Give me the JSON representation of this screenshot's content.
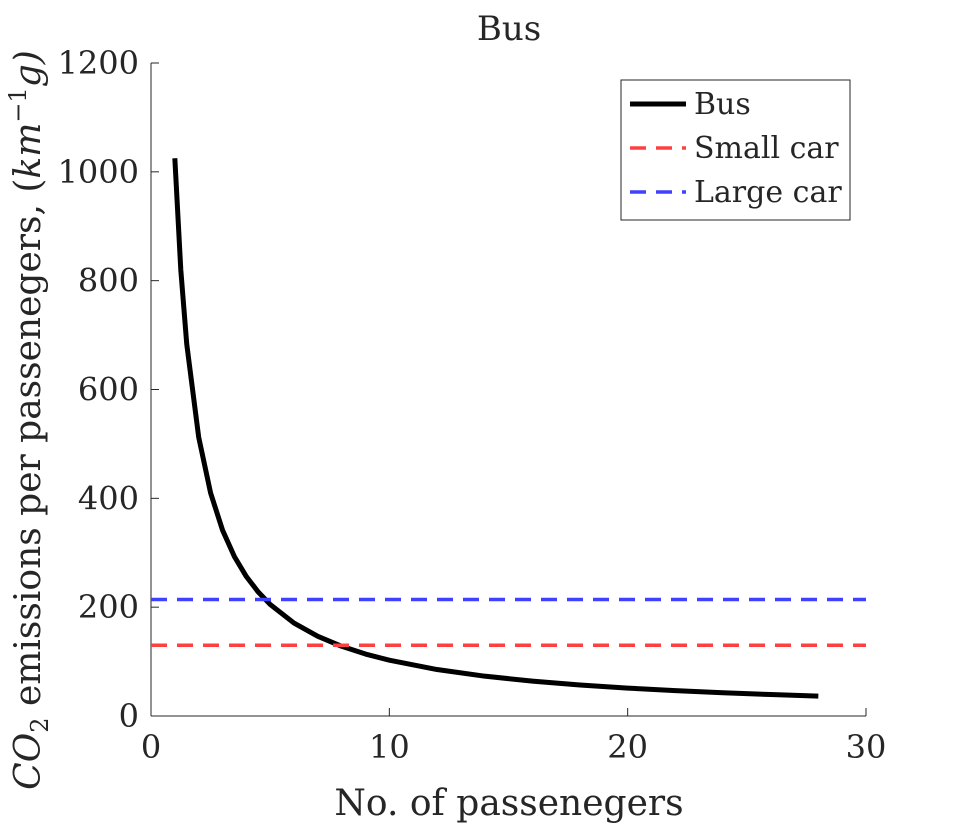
{
  "chart_data": {
    "type": "line",
    "title": "Bus",
    "xlabel": "No. of passenegers",
    "ylabel": {
      "prefix": "CO",
      "subscript": "2",
      "middle": " emissions per passenegers, (",
      "unit_base": "km",
      "unit_superscript": "−1",
      "unit_tail": "g)"
    },
    "xlim": [
      0,
      30
    ],
    "ylim": [
      0,
      1200
    ],
    "xticks": [
      0,
      10,
      20,
      30
    ],
    "yticks": [
      0,
      200,
      400,
      600,
      800,
      1000,
      1200
    ],
    "grid": false,
    "legend_position": "top-right",
    "series": [
      {
        "name": "Bus",
        "style": "solid",
        "color": "#000000",
        "x": [
          1,
          1.25,
          1.5,
          2,
          2.5,
          3,
          3.5,
          4,
          4.5,
          5,
          6,
          7,
          8,
          9,
          10,
          12,
          14,
          16,
          18,
          20,
          22,
          24,
          26,
          28
        ],
        "y": [
          1025,
          820,
          683.3,
          512.5,
          410,
          341.7,
          292.9,
          256.3,
          227.8,
          205,
          170.8,
          146.4,
          128.1,
          113.9,
          102.5,
          85.4,
          73.2,
          64.1,
          56.9,
          51.3,
          46.6,
          42.7,
          39.4,
          36.6
        ]
      },
      {
        "name": "Small car",
        "style": "dashed",
        "color": "#ff4040",
        "x": [
          0,
          30
        ],
        "y": [
          130,
          130
        ]
      },
      {
        "name": "Large car",
        "style": "dashed",
        "color": "#4040ff",
        "x": [
          0,
          30
        ],
        "y": [
          214,
          214
        ]
      }
    ]
  }
}
